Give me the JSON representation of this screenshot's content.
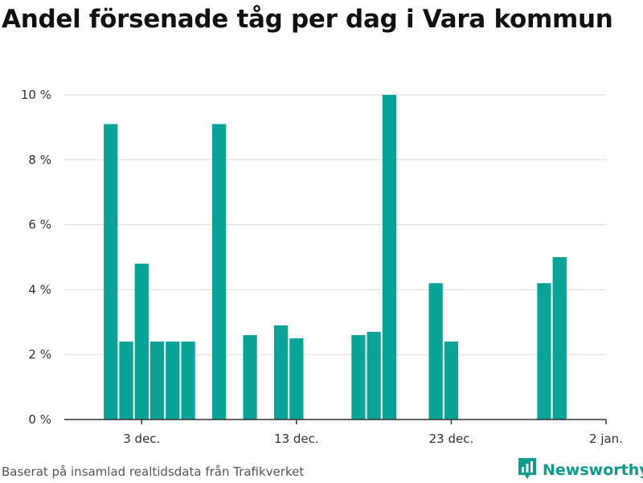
{
  "title": "Andel försenade tåg per dag i Vara kommun",
  "source": "Baserat på insamlad realtidsdata från Trafikverket",
  "brand": {
    "name": "Newsworthy",
    "icon": "newsworthy-logo-icon",
    "color": "#0a9c8c"
  },
  "colors": {
    "bar": "#0aa397",
    "grid": "#d9d9d9",
    "axis": "#333333"
  },
  "chart_data": {
    "type": "bar",
    "title": "Andel försenade tåg per dag i Vara kommun",
    "x_axis": "date",
    "x_range": [
      "2018-11-28",
      "2019-01-02"
    ],
    "xticks": [
      {
        "date": "2018-12-03",
        "label": "3 dec."
      },
      {
        "date": "2018-12-13",
        "label": "13 dec."
      },
      {
        "date": "2018-12-23",
        "label": "23 dec."
      },
      {
        "date": "2019-01-02",
        "label": "2 jan."
      }
    ],
    "ylim": [
      0,
      10
    ],
    "yticks": [
      0,
      2,
      4,
      6,
      8,
      10
    ],
    "yunit": " %",
    "grid": true,
    "legend": "none",
    "bars": [
      {
        "date": "2018-12-01",
        "value": 9.1
      },
      {
        "date": "2018-12-02",
        "value": 2.4
      },
      {
        "date": "2018-12-03",
        "value": 4.8
      },
      {
        "date": "2018-12-04",
        "value": 2.4
      },
      {
        "date": "2018-12-05",
        "value": 2.4
      },
      {
        "date": "2018-12-06",
        "value": 2.4
      },
      {
        "date": "2018-12-08",
        "value": 9.1
      },
      {
        "date": "2018-12-10",
        "value": 2.6
      },
      {
        "date": "2018-12-12",
        "value": 2.9
      },
      {
        "date": "2018-12-13",
        "value": 2.5
      },
      {
        "date": "2018-12-17",
        "value": 2.6
      },
      {
        "date": "2018-12-18",
        "value": 2.7
      },
      {
        "date": "2018-12-19",
        "value": 10.0
      },
      {
        "date": "2018-12-22",
        "value": 4.2
      },
      {
        "date": "2018-12-23",
        "value": 2.4
      },
      {
        "date": "2018-12-29",
        "value": 4.2
      },
      {
        "date": "2018-12-30",
        "value": 5.0
      }
    ]
  }
}
